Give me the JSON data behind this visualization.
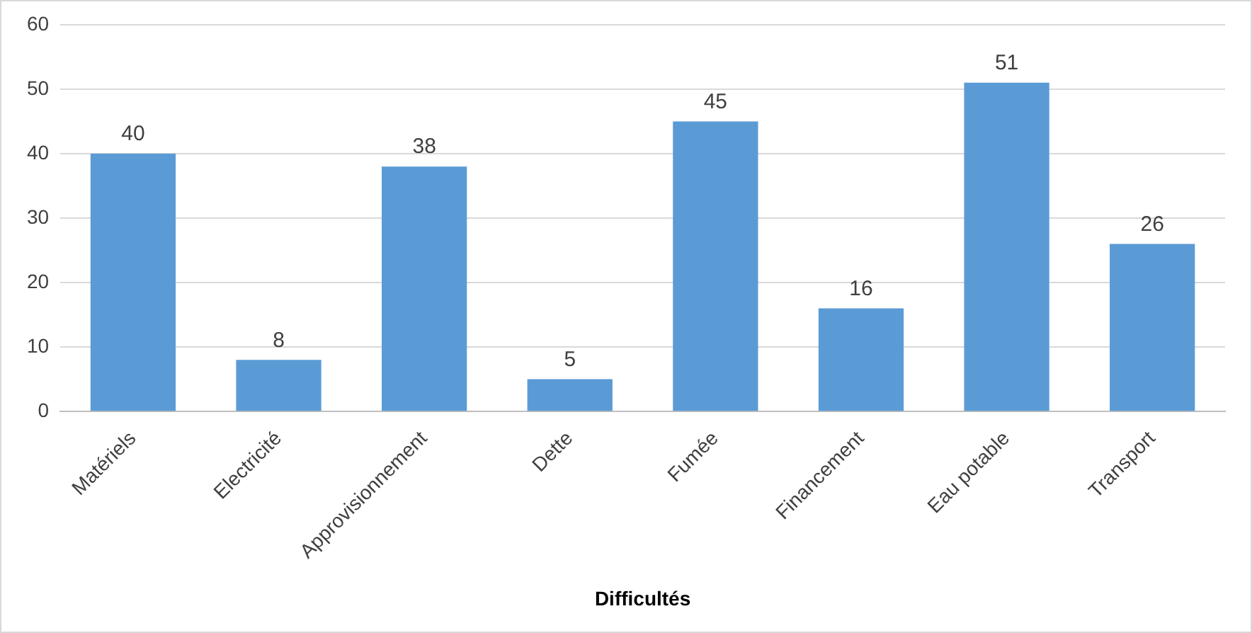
{
  "chart_data": {
    "type": "bar",
    "xlabel": "Difficultés",
    "categories": [
      "Matériels",
      "Electricité",
      "Approvisionnement",
      "Dette",
      "Fumée",
      "Financement",
      "Eau potable",
      "Transport"
    ],
    "values": [
      40,
      8,
      38,
      5,
      45,
      16,
      51,
      26
    ],
    "color": "#5b9bd5",
    "ylim": [
      0,
      60
    ],
    "yticks": [
      0,
      10,
      20,
      30,
      40,
      50,
      60
    ],
    "grid": "y",
    "legend": false,
    "data_labels": true
  }
}
